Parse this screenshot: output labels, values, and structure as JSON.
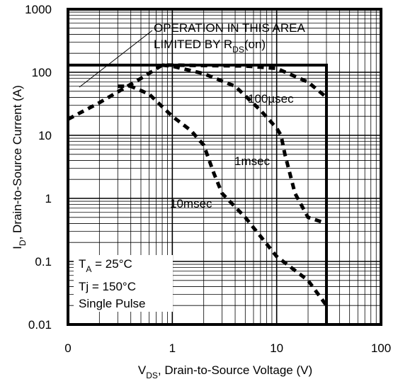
{
  "chart_data": {
    "type": "line",
    "title": "",
    "xlabel": {
      "main": "V",
      "sub": "DS",
      "rest": ", Drain-to-Source Voltage (V)"
    },
    "ylabel": {
      "main": "I",
      "sub": "D",
      "rest": ",  Drain-to-Source Current (A)"
    },
    "x_scale": "log",
    "y_scale": "log",
    "xlim": [
      0.1,
      100
    ],
    "ylim": [
      0.01,
      1000
    ],
    "x_tick_labels": [
      "0",
      "1",
      "10",
      "100"
    ],
    "y_tick_labels": [
      "0.01",
      "0.1",
      "1",
      "10",
      "100",
      "1000"
    ],
    "grid": true,
    "series": [
      {
        "name": "100µsec",
        "style": "dashed",
        "x": [
          0.1,
          0.2,
          0.5,
          0.8,
          1,
          2,
          5,
          10,
          20,
          30
        ],
        "y": [
          18,
          33,
          80,
          130,
          130,
          128,
          126,
          115,
          70,
          40
        ]
      },
      {
        "name": "1msec",
        "style": "dashed",
        "x": [
          0.8,
          1,
          2,
          4,
          7,
          10,
          11,
          12,
          15,
          20,
          30
        ],
        "y": [
          130,
          125,
          95,
          60,
          25,
          13,
          10,
          5,
          1.2,
          0.5,
          0.4
        ]
      },
      {
        "name": "10msec",
        "style": "dashed",
        "x": [
          0.3,
          0.4,
          0.6,
          1,
          1.5,
          2,
          2.5,
          3,
          5,
          10,
          20,
          30
        ],
        "y": [
          60,
          60,
          45,
          20,
          12,
          7,
          2.5,
          1.2,
          0.5,
          0.12,
          0.05,
          0.02
        ]
      }
    ],
    "limit_box": {
      "vds_max": 30,
      "id_max": 130
    },
    "annotations": {
      "rds_line1": "OPERATION IN THIS AREA",
      "rds_line2": "LIMITED BY R",
      "rds_sub": "DS",
      "rds_tail": "(on)",
      "label_100us": "100µsec",
      "label_1ms": "1msec",
      "label_10ms": "10msec",
      "cond_ta": "T",
      "cond_ta_sub": "A",
      "cond_ta_val": " = 25°C",
      "cond_tj": "Tj = 150°C",
      "cond_pulse": "Single Pulse"
    }
  }
}
